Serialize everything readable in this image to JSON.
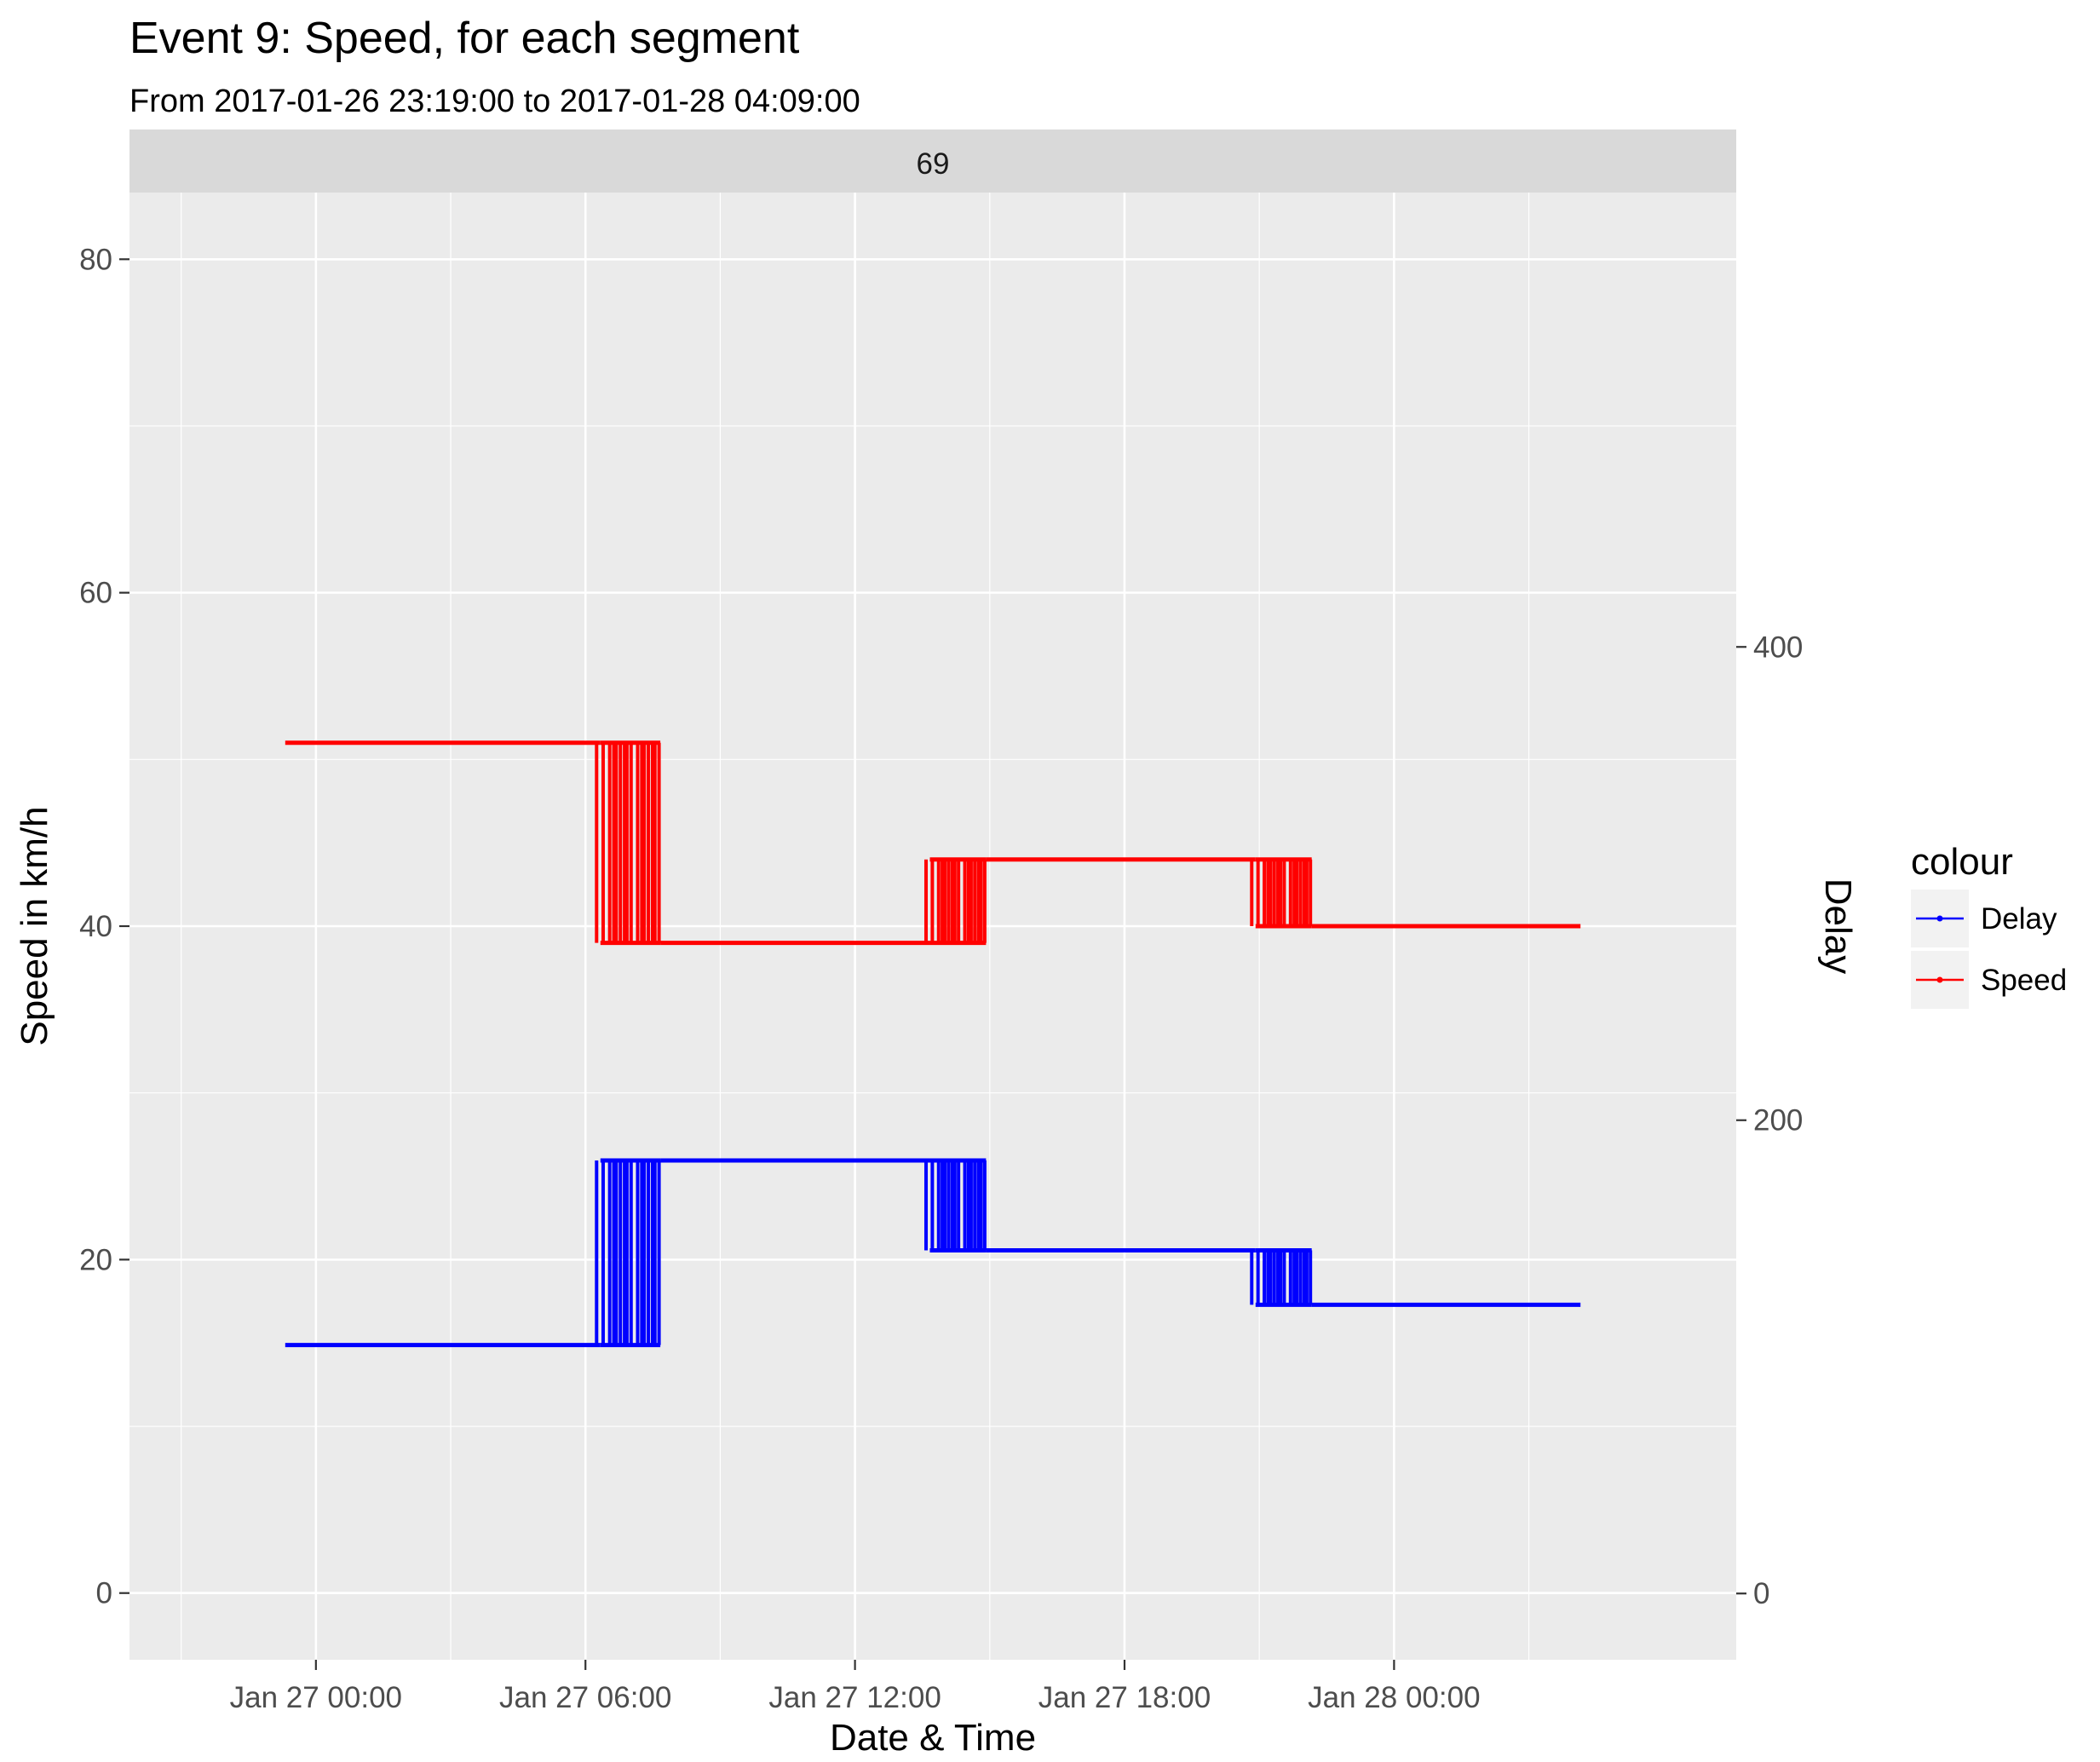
{
  "chart_data": {
    "type": "line",
    "title": "Event 9: Speed, for each segment",
    "subtitle": "From 2017-01-26 23:19:00 to 2017-01-28 04:09:00",
    "facet_label": "69",
    "xlabel": "Date & Time",
    "ylabel": "Speed in km/h",
    "y2label": "Delay",
    "xlim": [
      "2017-01-26 19:51:00",
      "2017-01-28 07:37:00"
    ],
    "ylim": [
      -4,
      84
    ],
    "y2lim": [
      -28,
      592
    ],
    "x_ticks": [
      "2017-01-27 00:00",
      "2017-01-27 06:00",
      "2017-01-27 12:00",
      "2017-01-27 18:00",
      "2017-01-28 00:00"
    ],
    "x_tick_labels": [
      "Jan 27 00:00",
      "Jan 27 06:00",
      "Jan 27 12:00",
      "Jan 27 18:00",
      "Jan 28 00:00"
    ],
    "y_ticks": [
      0,
      20,
      40,
      60,
      80
    ],
    "y2_ticks": [
      0,
      200,
      400
    ],
    "grid": true,
    "legend": {
      "title": "colour",
      "position": "right",
      "entries": [
        "Delay",
        "Speed"
      ]
    },
    "colors": {
      "Delay": "#0000ff",
      "Speed": "#ff0000"
    },
    "series": [
      {
        "name": "Speed",
        "axis": "left",
        "segments": [
          {
            "from": "2017-01-26 23:19:00",
            "to": "2017-01-27 06:20:00",
            "value": 51
          },
          {
            "from": "2017-01-27 06:20:00",
            "to": "2017-01-27 07:40:00",
            "value": 51,
            "alt_value": 39,
            "switching": true
          },
          {
            "from": "2017-01-27 07:40:00",
            "to": "2017-01-27 13:40:00",
            "value": 39
          },
          {
            "from": "2017-01-27 13:40:00",
            "to": "2017-01-27 14:55:00",
            "value": 44,
            "alt_value": 39,
            "switching": true
          },
          {
            "from": "2017-01-27 14:55:00",
            "to": "2017-01-27 20:55:00",
            "value": 44
          },
          {
            "from": "2017-01-27 20:55:00",
            "to": "2017-01-27 22:10:00",
            "value": 44,
            "alt_value": 40,
            "switching": true
          },
          {
            "from": "2017-01-27 22:10:00",
            "to": "2017-01-28 04:09:00",
            "value": 40
          }
        ]
      },
      {
        "name": "Delay",
        "axis": "right",
        "segments": [
          {
            "from": "2017-01-26 23:19:00",
            "to": "2017-01-27 06:20:00",
            "value": 105
          },
          {
            "from": "2017-01-27 06:20:00",
            "to": "2017-01-27 07:40:00",
            "value": 183,
            "alt_value": 105,
            "switching": true
          },
          {
            "from": "2017-01-27 07:40:00",
            "to": "2017-01-27 13:40:00",
            "value": 183
          },
          {
            "from": "2017-01-27 13:40:00",
            "to": "2017-01-27 14:55:00",
            "value": 183,
            "alt_value": 145,
            "switching": true
          },
          {
            "from": "2017-01-27 14:55:00",
            "to": "2017-01-27 20:55:00",
            "value": 145
          },
          {
            "from": "2017-01-27 20:55:00",
            "to": "2017-01-27 22:10:00",
            "value": 145,
            "alt_value": 122,
            "switching": true
          },
          {
            "from": "2017-01-27 22:10:00",
            "to": "2017-01-28 04:09:00",
            "value": 122
          }
        ]
      }
    ]
  }
}
